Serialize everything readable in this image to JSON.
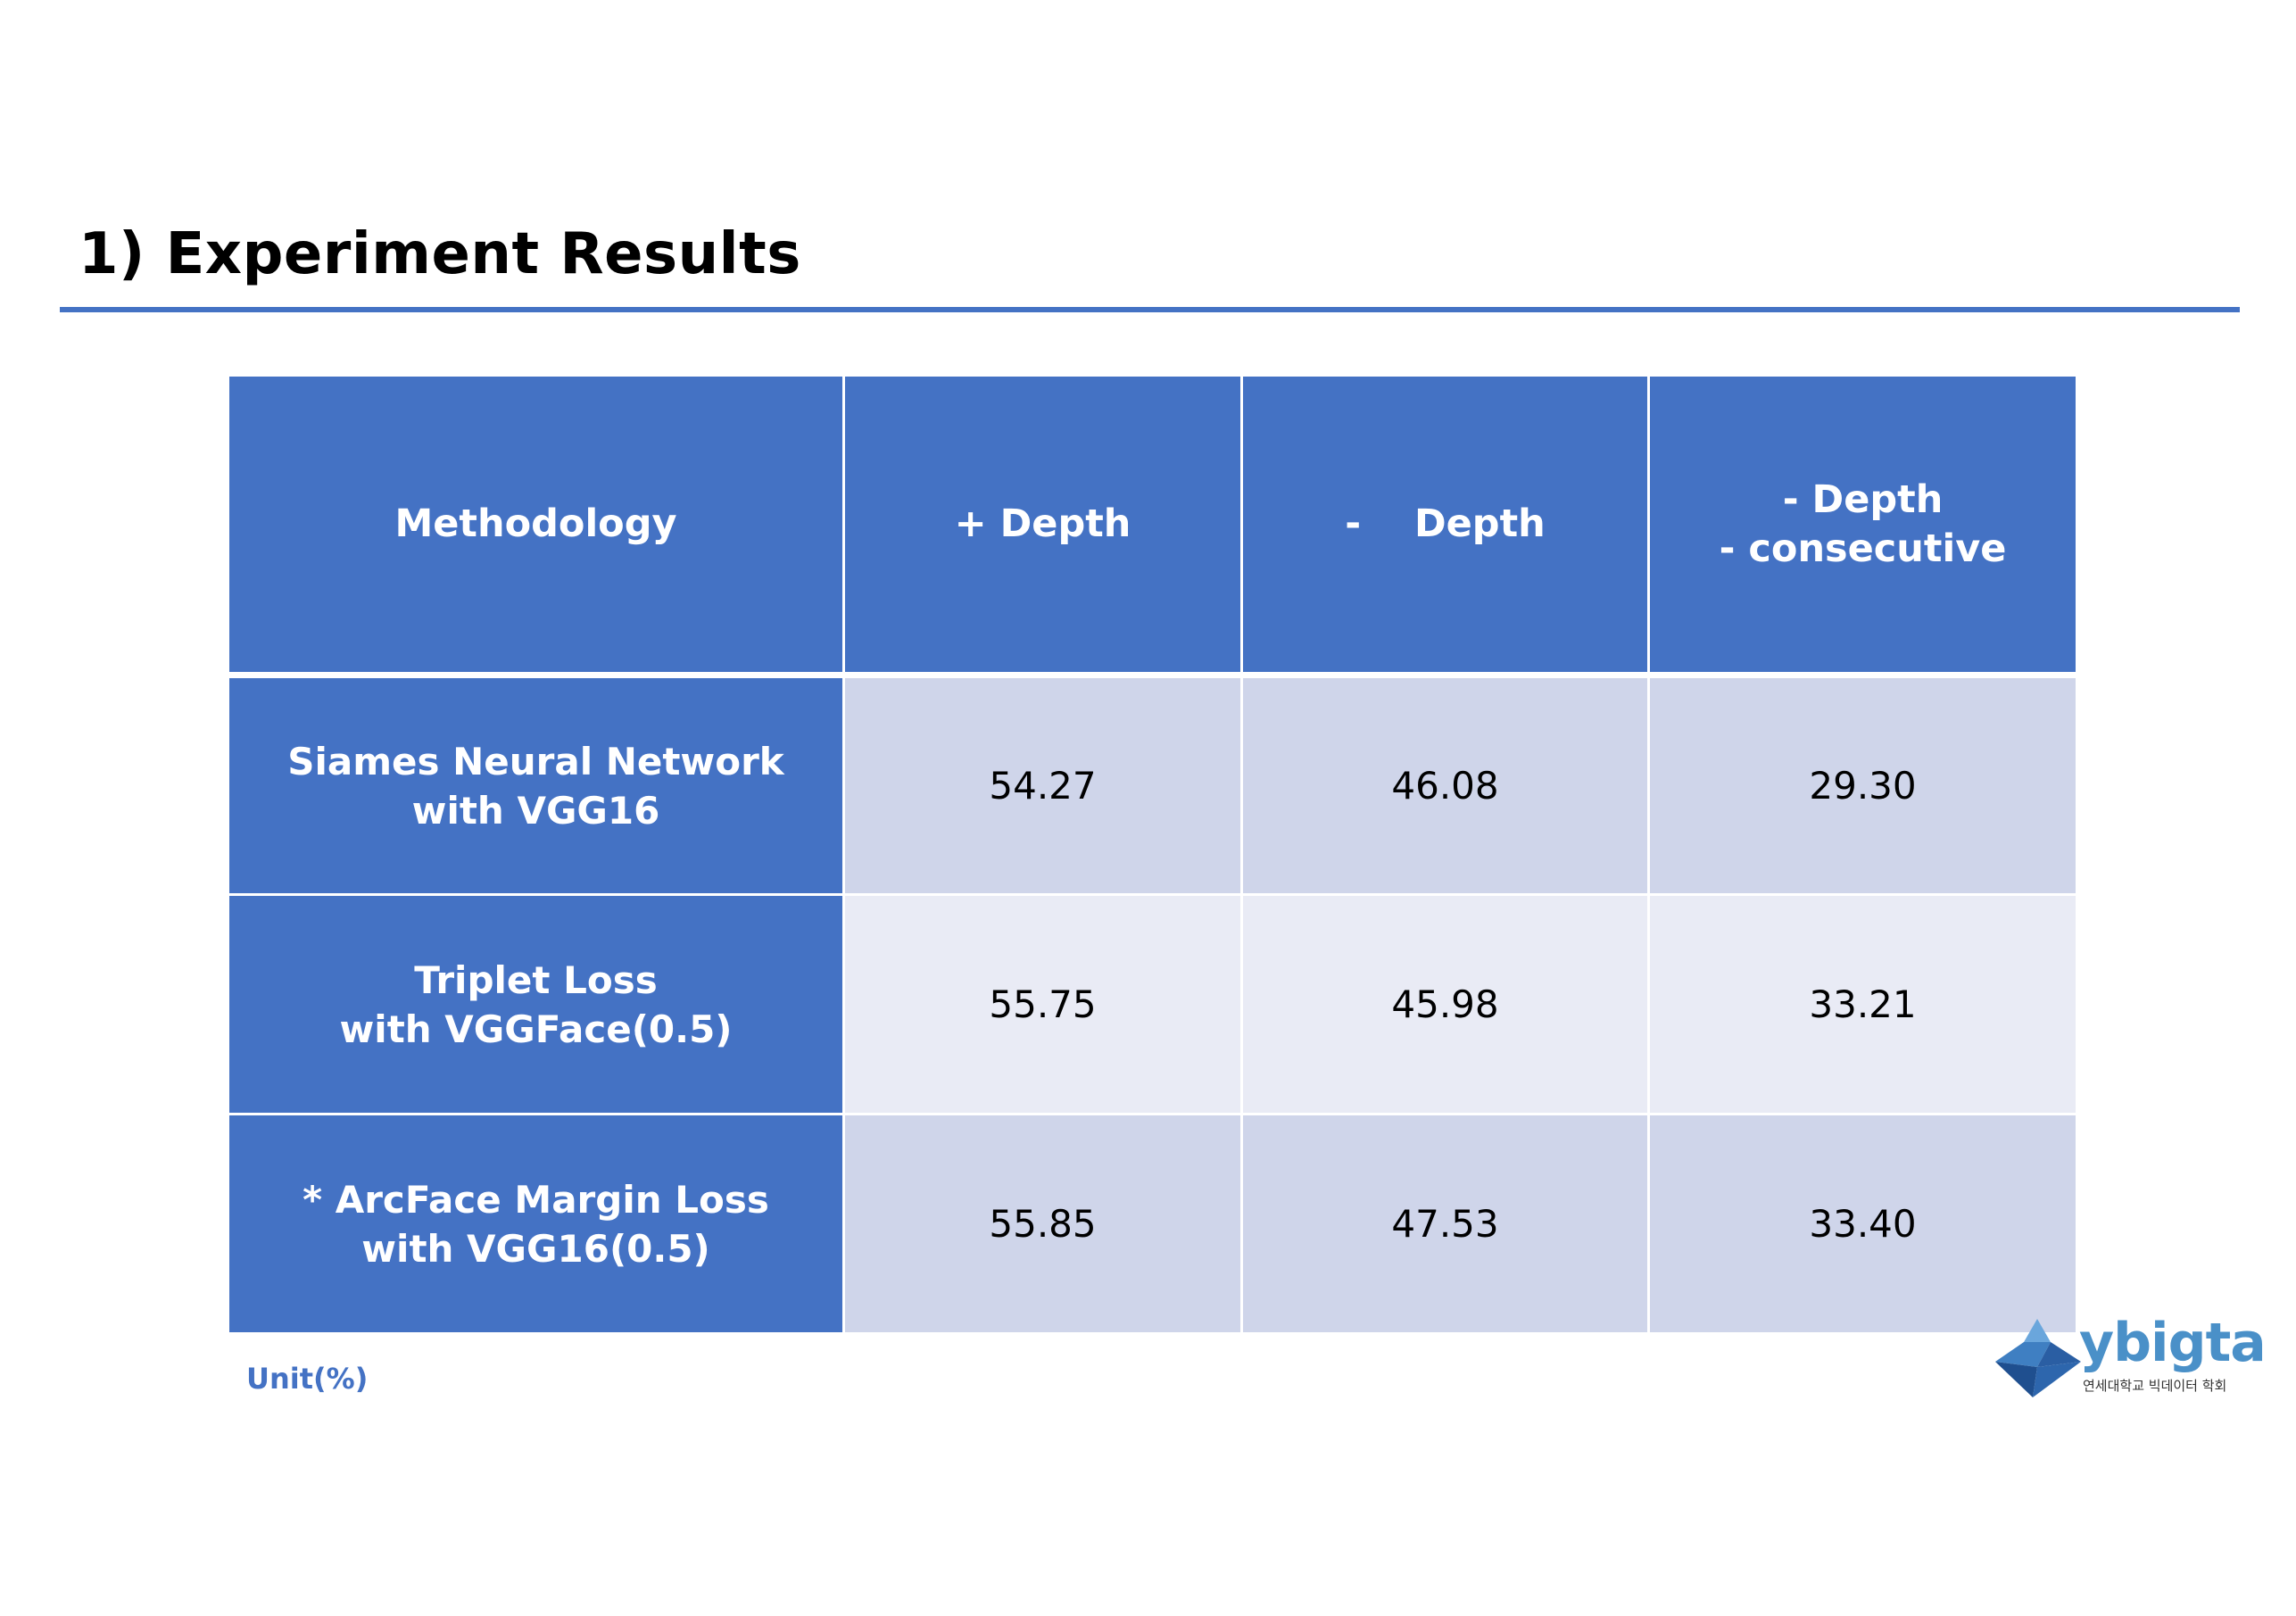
{
  "title": "1) Experiment Results",
  "table": {
    "headers": [
      [
        "Methodology"
      ],
      [
        "+ Depth"
      ],
      [
        "-    Depth"
      ],
      [
        "- Depth",
        "- consecutive"
      ]
    ],
    "rows": [
      {
        "method": [
          "Siames Neural Network",
          "with VGG16"
        ],
        "values": [
          "54.27",
          "46.08",
          "29.30"
        ]
      },
      {
        "method": [
          "Triplet Loss",
          "with VGGFace(0.5)"
        ],
        "values": [
          "55.75",
          "45.98",
          "33.21"
        ]
      },
      {
        "method": [
          "* ArcFace Margin Loss",
          "with VGG16(0.5)"
        ],
        "values": [
          "55.85",
          "47.53",
          "33.40"
        ]
      }
    ]
  },
  "unit_note": "Unit(%)",
  "logo": {
    "word": "ybigta",
    "subtitle": "연세대학교 빅데이터 학회"
  },
  "colors": {
    "accent": "#4472c4",
    "row_dark": "#cfd5ea",
    "row_light": "#e9ebf5"
  }
}
